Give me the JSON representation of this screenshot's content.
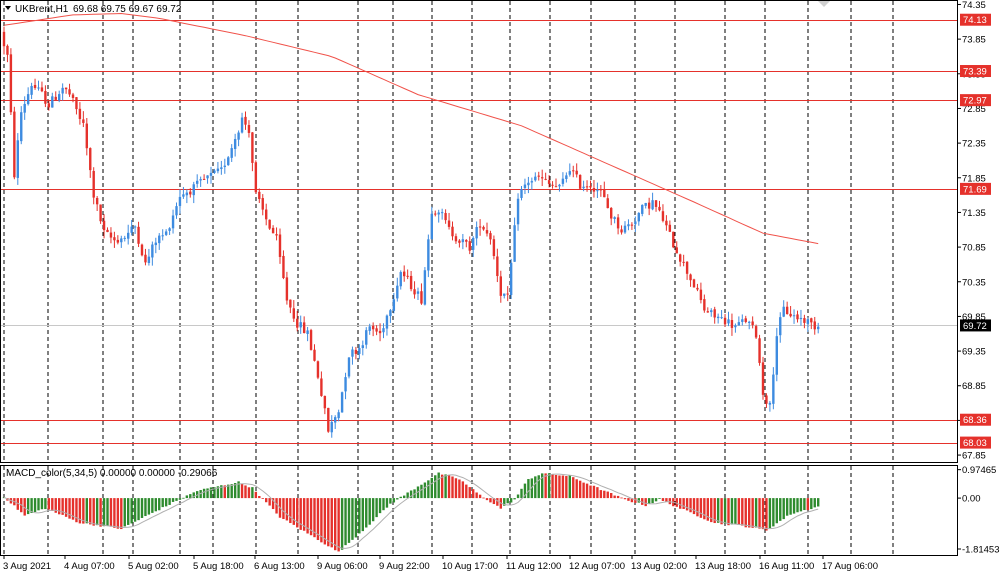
{
  "header": {
    "menu_icon": "triangle-down-icon",
    "symbol": "UKBrent,H1",
    "ohlc": "69.68 69.75 69.67 69.72"
  },
  "indicator": {
    "label": "MACD_color(5,34,5) 0.00000 0.00000 -0.29066"
  },
  "colors": {
    "bull": "#3d8be0",
    "bear": "#e5312b",
    "ma": "#f0524a",
    "level": "#e5312b",
    "grid": "#000000",
    "current": "#c0c0c0",
    "macd_up": "#2e8b2e",
    "macd_down": "#e5312b",
    "signal": "#a8a8a8"
  },
  "price_axis": {
    "ticks": [
      "74.35",
      "73.85",
      "73.35",
      "72.85",
      "72.35",
      "71.85",
      "71.35",
      "70.85",
      "70.35",
      "69.85",
      "69.35",
      "68.85",
      "68.35",
      "67.85"
    ]
  },
  "macd_axis": {
    "ticks": [
      "0.97465",
      "0.00",
      "-1.81453"
    ]
  },
  "time_axis": {
    "labels": [
      "3 Aug 2021",
      "4 Aug 07:00",
      "5 Aug 02:00",
      "5 Aug 18:00",
      "6 Aug 13:00",
      "9 Aug 06:00",
      "9 Aug 22:00",
      "10 Aug 17:00",
      "11 Aug 12:00",
      "12 Aug 07:00",
      "13 Aug 02:00",
      "13 Aug 18:00",
      "16 Aug 11:00",
      "17 Aug 06:00"
    ]
  },
  "levels": [
    {
      "price": 74.13,
      "label": "74.13"
    },
    {
      "price": 73.39,
      "label": "73.39"
    },
    {
      "price": 72.97,
      "label": "72.97"
    },
    {
      "price": 71.69,
      "label": "71.69"
    },
    {
      "price": 68.36,
      "label": "68.36"
    },
    {
      "price": 68.03,
      "label": "68.03"
    }
  ],
  "current_price": {
    "price": 69.72,
    "label": "69.72"
  },
  "chart_data": {
    "type": "candlestick",
    "title": "UKBrent,H1",
    "ylim": [
      67.75,
      74.4
    ],
    "anchors": [
      [
        0,
        73.95
      ],
      [
        2,
        73.6
      ],
      [
        4,
        71.9
      ],
      [
        6,
        72.8
      ],
      [
        9,
        73.2
      ],
      [
        12,
        73.05
      ],
      [
        14,
        72.9
      ],
      [
        18,
        73.15
      ],
      [
        20,
        73.05
      ],
      [
        24,
        72.6
      ],
      [
        27,
        71.6
      ],
      [
        30,
        71.05
      ],
      [
        33,
        70.95
      ],
      [
        36,
        71.0
      ],
      [
        39,
        71.15
      ],
      [
        42,
        70.6
      ],
      [
        45,
        70.95
      ],
      [
        48,
        71.05
      ],
      [
        52,
        71.6
      ],
      [
        56,
        71.7
      ],
      [
        60,
        71.85
      ],
      [
        64,
        71.95
      ],
      [
        67,
        72.3
      ],
      [
        70,
        72.7
      ],
      [
        72,
        72.55
      ],
      [
        74,
        71.6
      ],
      [
        77,
        71.25
      ],
      [
        80,
        70.95
      ],
      [
        83,
        70.1
      ],
      [
        86,
        69.75
      ],
      [
        89,
        69.6
      ],
      [
        92,
        69.0
      ],
      [
        95,
        68.2
      ],
      [
        98,
        68.5
      ],
      [
        101,
        69.3
      ],
      [
        104,
        69.4
      ],
      [
        107,
        69.7
      ],
      [
        110,
        69.6
      ],
      [
        113,
        70.0
      ],
      [
        116,
        70.5
      ],
      [
        119,
        70.3
      ],
      [
        122,
        70.1
      ],
      [
        125,
        71.4
      ],
      [
        127,
        71.4
      ],
      [
        130,
        71.1
      ],
      [
        133,
        70.95
      ],
      [
        136,
        70.85
      ],
      [
        139,
        71.2
      ],
      [
        142,
        71.0
      ],
      [
        145,
        70.2
      ],
      [
        147,
        70.1
      ],
      [
        150,
        71.6
      ],
      [
        153,
        71.8
      ],
      [
        156,
        71.85
      ],
      [
        159,
        71.75
      ],
      [
        162,
        71.7
      ],
      [
        165,
        72.0
      ],
      [
        168,
        71.75
      ],
      [
        171,
        71.75
      ],
      [
        174,
        71.65
      ],
      [
        177,
        71.3
      ],
      [
        180,
        71.1
      ],
      [
        183,
        71.2
      ],
      [
        186,
        71.4
      ],
      [
        189,
        71.5
      ],
      [
        192,
        71.25
      ],
      [
        195,
        70.9
      ],
      [
        198,
        70.6
      ],
      [
        201,
        70.3
      ],
      [
        204,
        69.95
      ],
      [
        207,
        69.85
      ],
      [
        210,
        69.8
      ],
      [
        213,
        69.7
      ],
      [
        216,
        69.8
      ],
      [
        219,
        69.6
      ],
      [
        221,
        68.75
      ],
      [
        223,
        68.55
      ],
      [
        225,
        69.6
      ],
      [
        227,
        69.95
      ],
      [
        230,
        69.85
      ],
      [
        233,
        69.8
      ],
      [
        236,
        69.72
      ]
    ],
    "ma_path": [
      [
        0,
        74.05
      ],
      [
        20,
        74.2
      ],
      [
        34,
        74.22
      ],
      [
        45,
        74.15
      ],
      [
        70,
        73.9
      ],
      [
        95,
        73.6
      ],
      [
        120,
        73.05
      ],
      [
        150,
        72.6
      ],
      [
        175,
        72.05
      ],
      [
        200,
        71.5
      ],
      [
        220,
        71.05
      ],
      [
        236,
        70.9
      ]
    ],
    "macd": [
      [
        0,
        0.05
      ],
      [
        6,
        -0.6
      ],
      [
        12,
        -0.35
      ],
      [
        22,
        -0.85
      ],
      [
        34,
        -1.05
      ],
      [
        44,
        -0.45
      ],
      [
        56,
        0.25
      ],
      [
        68,
        0.55
      ],
      [
        72,
        0.35
      ],
      [
        80,
        -0.65
      ],
      [
        90,
        -1.35
      ],
      [
        97,
        -1.85
      ],
      [
        105,
        -1.0
      ],
      [
        112,
        -0.2
      ],
      [
        118,
        0.25
      ],
      [
        126,
        0.85
      ],
      [
        132,
        0.65
      ],
      [
        138,
        0.1
      ],
      [
        144,
        -0.35
      ],
      [
        148,
        -0.05
      ],
      [
        152,
        0.65
      ],
      [
        156,
        0.85
      ],
      [
        164,
        0.75
      ],
      [
        172,
        0.35
      ],
      [
        180,
        -0.05
      ],
      [
        186,
        -0.25
      ],
      [
        190,
        -0.05
      ],
      [
        196,
        -0.35
      ],
      [
        206,
        -0.85
      ],
      [
        214,
        -0.95
      ],
      [
        221,
        -1.1
      ],
      [
        228,
        -0.55
      ],
      [
        236,
        -0.29
      ]
    ],
    "macd_ylim": [
      -1.95,
      1.1
    ]
  }
}
